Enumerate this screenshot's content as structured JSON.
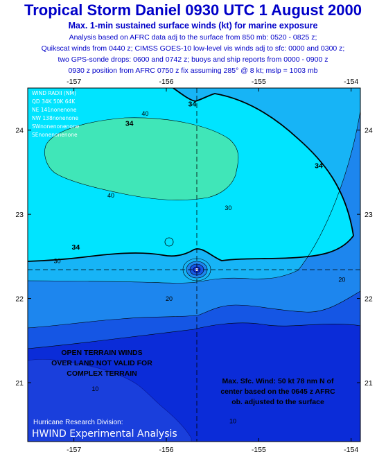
{
  "header": {
    "title": "Tropical Storm Daniel  0930 UTC 1 August 2000",
    "subtitle": "Max. 1-min sustained surface winds (kt) for marine exposure",
    "notes": [
      "Analysis based on AFRC data adj to the surface from 850 mb: 0520 - 0825 z;",
      "Quikscat winds from 0440 z; CIMSS GOES-10 low-level vis winds adj to sfc: 0000 and 0300 z;",
      "two GPS-sonde drops: 0600 and 0742 z; buoys and ship reports from 0000 - 0900 z",
      "0930 z position from AFRC 0750 z  fix assuming 285° @ 8 kt; mslp = 1003 mb"
    ]
  },
  "chart_data": {
    "type": "contour",
    "x_axis": {
      "range": [
        -157.5,
        -153.9
      ],
      "ticks": [
        -157,
        -156,
        -155,
        -154
      ],
      "tick_labels": [
        "-157",
        "-156",
        "-155",
        "-154"
      ]
    },
    "y_axis": {
      "range": [
        20.3,
        24.5
      ],
      "ticks": [
        21,
        22,
        23,
        24
      ],
      "tick_labels": [
        "21",
        "22",
        "23",
        "24"
      ]
    },
    "center": {
      "lon": -155.8,
      "lat": 22.45
    },
    "contour_levels": [
      10,
      20,
      30,
      34,
      40,
      50
    ],
    "contour_labels": [
      {
        "text": "34",
        "lon": -156.4,
        "lat": 24.05,
        "bold": true
      },
      {
        "text": "34",
        "lon": -154.35,
        "lat": 23.55,
        "bold": true
      },
      {
        "text": "34",
        "lon": -156.98,
        "lat": 22.58,
        "bold": true
      },
      {
        "text": "34",
        "lon": -155.72,
        "lat": 24.28,
        "bold": true
      },
      {
        "text": "40",
        "lon": -156.23,
        "lat": 24.17,
        "bold": false
      },
      {
        "text": "40",
        "lon": -156.6,
        "lat": 23.2,
        "bold": false
      },
      {
        "text": "30",
        "lon": -155.33,
        "lat": 23.05,
        "bold": false
      },
      {
        "text": "30",
        "lon": -157.18,
        "lat": 22.42,
        "bold": false
      },
      {
        "text": "20",
        "lon": -155.97,
        "lat": 21.97,
        "bold": false
      },
      {
        "text": "20",
        "lon": -154.1,
        "lat": 22.2,
        "bold": false
      },
      {
        "text": "10",
        "lon": -156.77,
        "lat": 20.9,
        "bold": false
      },
      {
        "text": "10",
        "lon": -155.28,
        "lat": 20.52,
        "bold": false
      }
    ],
    "wind_radii": {
      "title": "WIND RADII (NM)",
      "columns": "QD 34K 50K 64K",
      "rows": [
        "NE 141nonenone",
        "NW 138nonenone",
        "SWnonenonenone",
        "SEnonenonenone"
      ]
    },
    "annotations": {
      "terrain": [
        "OPEN TERRAIN WINDS",
        "OVER LAND NOT VALID FOR",
        "COMPLEX TERRAIN"
      ],
      "max_wind": [
        "Max. Sfc. Wind: 50 kt 78 nm N of",
        "center based on the 0645 z AFRC",
        "ob. adjusted to the surface"
      ]
    },
    "colors": {
      "level_lt10": "#0b2cd8",
      "level_10_20": "#1556e4",
      "level_20_30": "#1d86ee",
      "level_30_34": "#17b4f6",
      "level_34_40": "#00e4ff",
      "level_40_50": "#40e6b8",
      "land": "#1a3fdc"
    }
  },
  "branding": {
    "line1": "Hurricane Research Division:",
    "line2": "HWIND Experimental Analysis"
  }
}
